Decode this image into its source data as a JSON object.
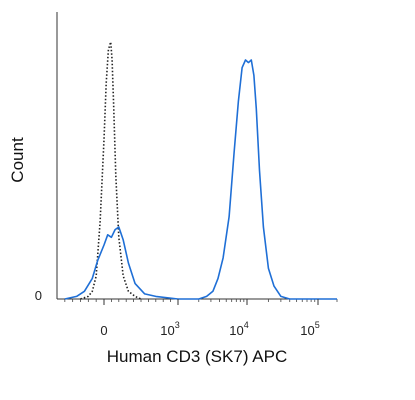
{
  "chart_data": {
    "type": "line",
    "title": "",
    "xlabel": "Human CD3 (SK7) APC",
    "ylabel": "Count",
    "x_scale": "biexponential",
    "xlim": [
      -600,
      200000
    ],
    "ylim": [
      0,
      100
    ],
    "x_tick_labels": [
      {
        "value": 0,
        "base": "0",
        "exp": ""
      },
      {
        "value": 1000,
        "base": "10",
        "exp": "3"
      },
      {
        "value": 10000,
        "base": "10",
        "exp": "4"
      },
      {
        "value": 100000,
        "base": "10",
        "exp": "5"
      }
    ],
    "y_tick_labels": [
      {
        "value": 0,
        "label": "0"
      }
    ],
    "grid": false,
    "legend": "none",
    "series": [
      {
        "style": "dotted",
        "color": "#222222",
        "x": [
          -300,
          -200,
          -150,
          -100,
          -50,
          0,
          30,
          60,
          90,
          110,
          130,
          160,
          200,
          260,
          330,
          420,
          500
        ],
        "y": [
          0,
          1,
          3,
          9,
          30,
          62,
          84,
          97,
          100,
          93,
          76,
          48,
          24,
          9,
          3,
          1,
          0
        ]
      },
      {
        "style": "solid",
        "color": "#1f6fd6",
        "x": [
          -500,
          -350,
          -250,
          -150,
          -80,
          0,
          50,
          100,
          150,
          200,
          260,
          330,
          420,
          550,
          700,
          1000,
          1500,
          2000,
          2600,
          3200,
          3800,
          4500,
          5500,
          6500,
          7500,
          8500,
          9500,
          10500,
          11500,
          12500,
          13500,
          15000,
          17000,
          20000,
          24000,
          30000,
          40000,
          60000,
          100000,
          200000
        ],
        "y": [
          0,
          1,
          3,
          8,
          15,
          21,
          25,
          24,
          27,
          28,
          23,
          14,
          6,
          2,
          1,
          0,
          0,
          0,
          1,
          3,
          8,
          16,
          32,
          57,
          77,
          90,
          93,
          92,
          93,
          87,
          74,
          50,
          28,
          12,
          5,
          1,
          0,
          0,
          0,
          0
        ]
      }
    ]
  }
}
